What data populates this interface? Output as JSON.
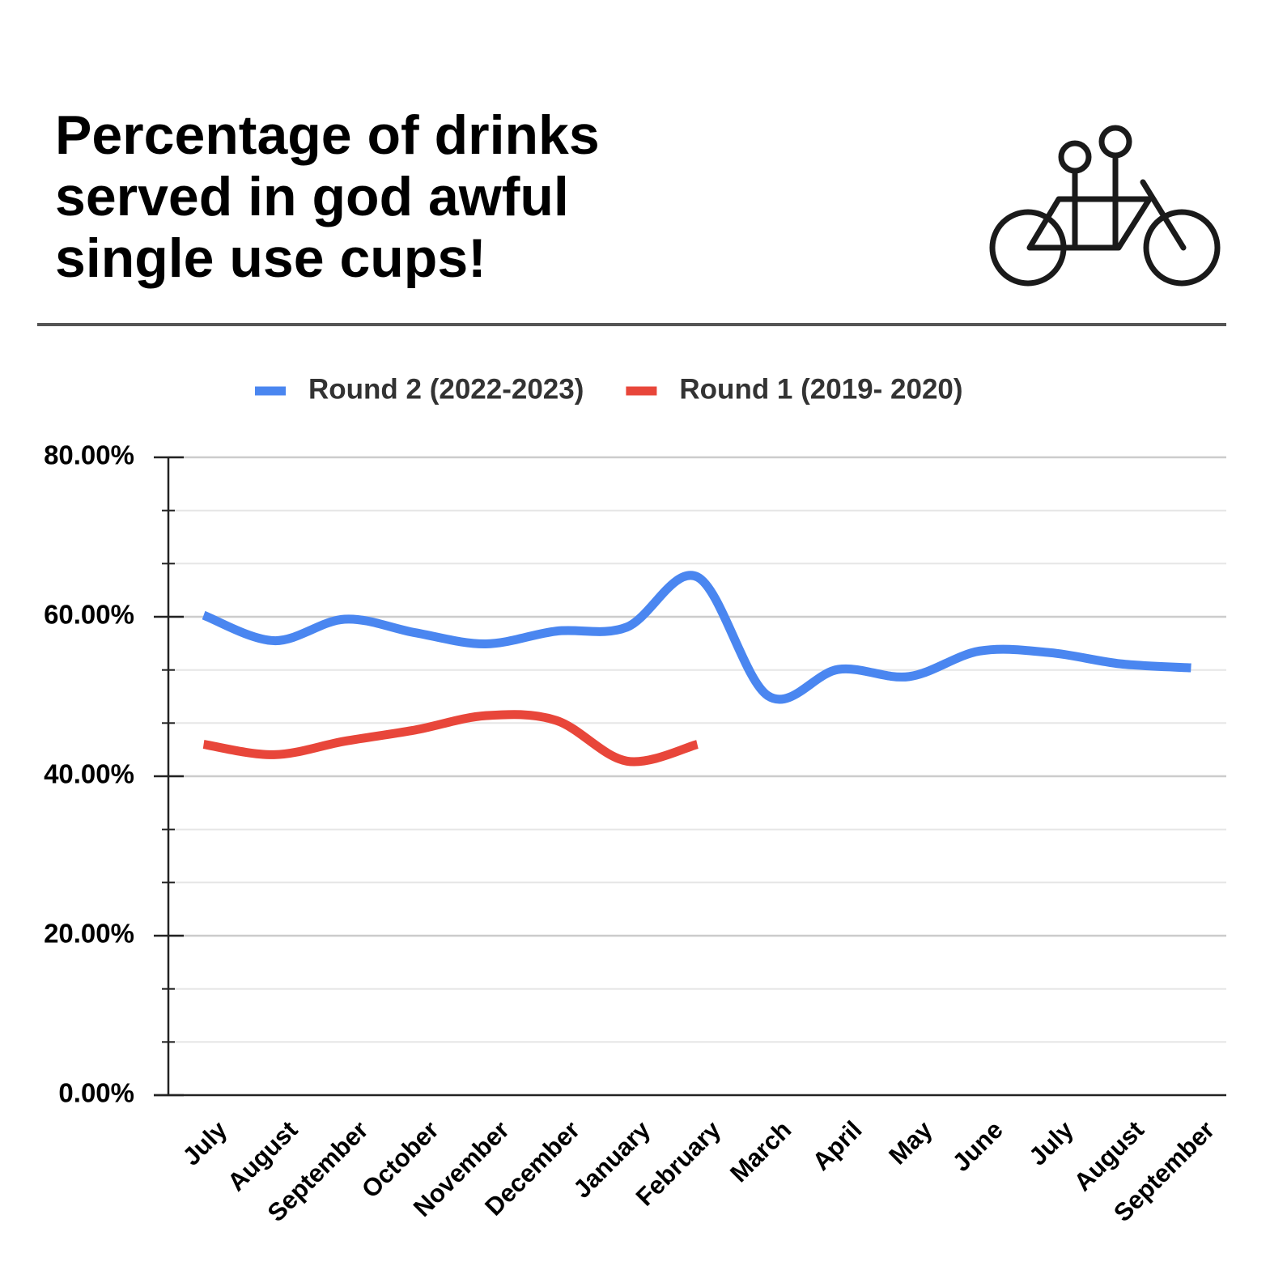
{
  "chart_data": {
    "type": "line",
    "title": "Percentage of drinks served in god awful single use cups!",
    "categories": [
      "July",
      "August",
      "September",
      "October",
      "November",
      "December",
      "January",
      "February",
      "March",
      "April",
      "May",
      "June",
      "July",
      "August",
      "September"
    ],
    "series": [
      {
        "name": "Round 2 (2022-2023)",
        "color": "#4a86f0",
        "values": [
          60.2,
          57.0,
          59.7,
          58.0,
          56.6,
          58.2,
          58.7,
          65.0,
          50.1,
          53.4,
          52.5,
          55.7,
          55.5,
          54.1,
          53.6
        ]
      },
      {
        "name": "Round 1 (2019- 2020)",
        "color": "#e8463a",
        "values": [
          44.0,
          42.7,
          44.4,
          45.8,
          47.6,
          47.0,
          41.9,
          44.0,
          null,
          null,
          null,
          null,
          null,
          null,
          null
        ]
      }
    ],
    "ylim": [
      0,
      80
    ],
    "yticks": [
      {
        "value": 0,
        "label": "0.00%"
      },
      {
        "value": 20,
        "label": "20.00%"
      },
      {
        "value": 40,
        "label": "40.00%"
      },
      {
        "value": 60,
        "label": "60.00%"
      },
      {
        "value": 80,
        "label": "80.00%"
      }
    ],
    "minor_yticks": [
      6.67,
      13.33,
      26.67,
      33.33,
      46.67,
      53.33,
      66.67,
      73.33
    ],
    "grid": true,
    "smooth": true,
    "legend": "top"
  }
}
